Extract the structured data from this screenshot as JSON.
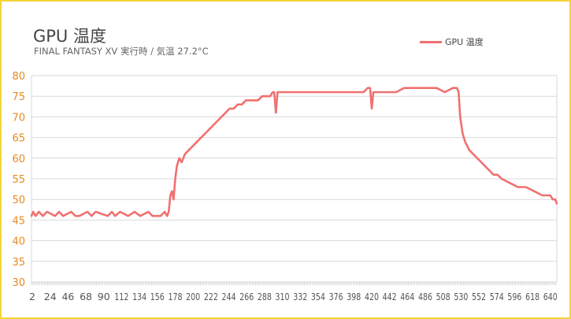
{
  "chart_data": {
    "type": "line",
    "title": "GPU 温度",
    "subtitle": "FINAL FANTASY XV 実行時 / 気温 27.2°C",
    "xlabel": "",
    "ylabel": "",
    "ylim": [
      30,
      80
    ],
    "yticks": [
      30,
      35,
      40,
      45,
      50,
      55,
      60,
      65,
      70,
      75,
      80
    ],
    "xlim": [
      1,
      648
    ],
    "xticks": [
      2,
      24,
      46,
      68,
      90,
      112,
      134,
      156,
      178,
      200,
      222,
      244,
      266,
      288,
      310,
      332,
      354,
      376,
      398,
      420,
      442,
      464,
      486,
      508,
      530,
      552,
      574,
      596,
      618,
      640
    ],
    "grid": true,
    "legend_position": "top-right",
    "colors": {
      "series": "#f07070",
      "tick_y": "#e58a1f",
      "grid": "#d9d9d9"
    },
    "series": [
      {
        "name": "GPU 温度",
        "x": [
          1,
          3,
          6,
          10,
          15,
          20,
          30,
          35,
          40,
          50,
          55,
          60,
          70,
          75,
          80,
          95,
          100,
          104,
          110,
          120,
          128,
          135,
          145,
          150,
          160,
          165,
          168,
          170,
          172,
          174,
          176,
          178,
          180,
          183,
          186,
          190,
          195,
          200,
          205,
          210,
          215,
          220,
          225,
          230,
          235,
          240,
          245,
          250,
          255,
          260,
          265,
          270,
          280,
          285,
          290,
          295,
          298,
          300,
          302,
          304,
          306,
          310,
          320,
          330,
          340,
          350,
          360,
          370,
          380,
          390,
          400,
          410,
          415,
          418,
          420,
          422,
          425,
          430,
          440,
          450,
          460,
          470,
          480,
          490,
          500,
          510,
          520,
          525,
          527,
          529,
          532,
          535,
          540,
          545,
          550,
          555,
          560,
          565,
          570,
          575,
          580,
          590,
          600,
          610,
          620,
          630,
          640,
          643,
          646,
          648
        ],
        "values": [
          46,
          47,
          46,
          47,
          46,
          47,
          46,
          47,
          46,
          47,
          46,
          46,
          47,
          46,
          47,
          46,
          47,
          46,
          47,
          46,
          47,
          46,
          47,
          46,
          46,
          47,
          46,
          47,
          51,
          52,
          50,
          55,
          58,
          60,
          59,
          61,
          62,
          63,
          64,
          65,
          66,
          67,
          68,
          69,
          70,
          71,
          72,
          72,
          73,
          73,
          74,
          74,
          74,
          75,
          75,
          75,
          76,
          76,
          71,
          76,
          76,
          76,
          76,
          76,
          76,
          76,
          76,
          76,
          76,
          76,
          76,
          76,
          77,
          77,
          72,
          76,
          76,
          76,
          76,
          76,
          77,
          77,
          77,
          77,
          77,
          76,
          77,
          77,
          76,
          70,
          66,
          64,
          62,
          61,
          60,
          59,
          58,
          57,
          56,
          56,
          55,
          54,
          53,
          53,
          52,
          51,
          51,
          50,
          50,
          49
        ]
      }
    ]
  }
}
